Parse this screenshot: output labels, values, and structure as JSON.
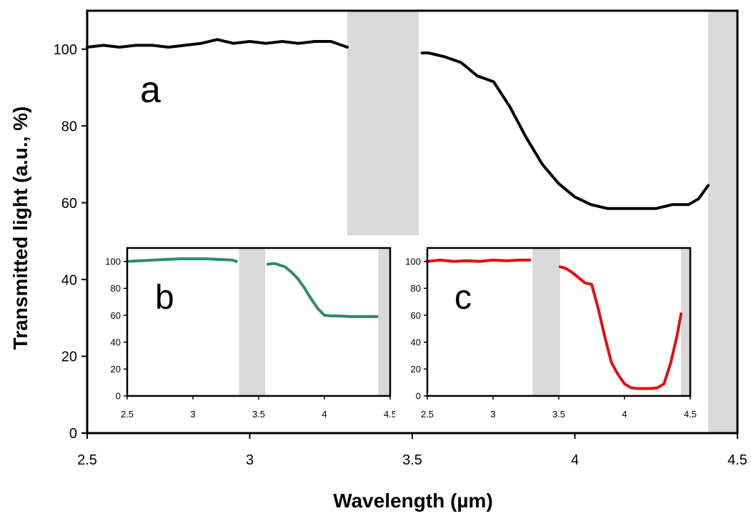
{
  "chart_data": [
    {
      "panel": "a",
      "type": "line",
      "xlabel": "Wavelength  (µm)",
      "ylabel": "Transmitted light  (a.u., %)",
      "xlim": [
        2.5,
        4.5
      ],
      "ylim": [
        0,
        110
      ],
      "xticks": [
        "2.5",
        "3",
        "3.5",
        "4",
        "4.5"
      ],
      "yticks": [
        "0",
        "20",
        "40",
        "60",
        "80",
        "100"
      ],
      "grid": false,
      "shaded_bands": [
        {
          "x": [
            3.3,
            3.52
          ],
          "y": [
            51.5,
            110
          ]
        },
        {
          "x": [
            4.41,
            4.5
          ],
          "y": [
            0,
            110
          ]
        }
      ],
      "series": [
        {
          "color": "#000000",
          "segments": [
            {
              "x": [
                2.5,
                2.55,
                2.6,
                2.65,
                2.7,
                2.75,
                2.8,
                2.85,
                2.9,
                2.95,
                3.0,
                3.05,
                3.1,
                3.15,
                3.2,
                3.25,
                3.3
              ],
              "y": [
                100.5,
                101,
                100.5,
                101,
                101,
                100.5,
                101,
                101.5,
                102.5,
                101.5,
                102,
                101.5,
                102,
                101.5,
                102,
                102,
                100.5
              ]
            },
            {
              "x": [
                3.53,
                3.55,
                3.6,
                3.65,
                3.7,
                3.75,
                3.8,
                3.85,
                3.9,
                3.95,
                4.0,
                4.05,
                4.1,
                4.15,
                4.2,
                4.25,
                4.3,
                4.35,
                4.38,
                4.41
              ],
              "y": [
                99,
                99,
                98,
                96.5,
                93,
                91.5,
                85,
                77,
                70,
                65,
                61.5,
                59.5,
                58.5,
                58.5,
                58.5,
                58.5,
                59.5,
                59.5,
                61,
                64.5
              ]
            }
          ]
        }
      ]
    },
    {
      "panel": "b",
      "type": "line",
      "xlim": [
        2.5,
        4.5
      ],
      "ylim": [
        0,
        110
      ],
      "xticks": [
        "2.5",
        "3",
        "3.5",
        "4",
        "4.5"
      ],
      "yticks": [
        "0",
        "20",
        "40",
        "60",
        "80",
        "100"
      ],
      "grid": false,
      "shaded_bands": [
        {
          "x": [
            3.35,
            3.55
          ],
          "y": [
            0,
            110
          ]
        },
        {
          "x": [
            4.41,
            4.5
          ],
          "y": [
            0,
            110
          ]
        }
      ],
      "series": [
        {
          "color": "#2e8b67",
          "segments": [
            {
              "x": [
                2.5,
                2.6,
                2.7,
                2.8,
                2.9,
                3.0,
                3.1,
                3.2,
                3.3,
                3.33
              ],
              "y": [
                100,
                100.5,
                101,
                101.5,
                102,
                102,
                102,
                101.5,
                101,
                100
              ]
            },
            {
              "x": [
                3.57,
                3.62,
                3.7,
                3.75,
                3.8,
                3.85,
                3.9,
                3.95,
                4.0,
                4.05,
                4.1,
                4.2,
                4.3,
                4.4
              ],
              "y": [
                98,
                98.5,
                96,
                92,
                87,
                80,
                72,
                65,
                60,
                59.5,
                59.5,
                59,
                59,
                59
              ]
            }
          ]
        }
      ]
    },
    {
      "panel": "c",
      "type": "line",
      "xlim": [
        2.5,
        4.5
      ],
      "ylim": [
        0,
        110
      ],
      "xticks": [
        "2.5",
        "3",
        "3.5",
        "4",
        "4.5"
      ],
      "yticks": [
        "0",
        "20",
        "40",
        "60",
        "80",
        "100"
      ],
      "grid": false,
      "shaded_bands": [
        {
          "x": [
            3.3,
            3.51
          ],
          "y": [
            0,
            110
          ]
        },
        {
          "x": [
            4.43,
            4.5
          ],
          "y": [
            0,
            110
          ]
        }
      ],
      "series": [
        {
          "color": "#e01010",
          "segments": [
            {
              "x": [
                2.5,
                2.6,
                2.7,
                2.8,
                2.9,
                3.0,
                3.1,
                3.2,
                3.28
              ],
              "y": [
                100,
                101,
                100,
                100.5,
                100,
                101,
                100.5,
                101,
                101
              ]
            },
            {
              "x": [
                3.51,
                3.55,
                3.6,
                3.65,
                3.7,
                3.75,
                3.8,
                3.85,
                3.9,
                3.95,
                4.0,
                4.05,
                4.1,
                4.15,
                4.2,
                4.25,
                4.3,
                4.35,
                4.4,
                4.43
              ],
              "y": [
                96,
                95,
                92,
                88,
                84,
                83,
                65,
                44,
                25,
                16,
                9,
                6,
                5.5,
                5.5,
                5.5,
                6,
                9,
                24,
                45,
                61
              ]
            }
          ]
        }
      ]
    }
  ],
  "panel_labels": {
    "a": "a",
    "b": "b",
    "c": "c"
  },
  "colors": {
    "shade": "#d9d9d9",
    "axis": "#000000"
  }
}
